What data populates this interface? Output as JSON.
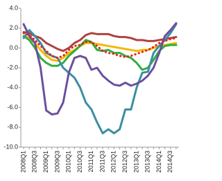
{
  "chart_data": {
    "type": "line",
    "categories": [
      "2008Q1",
      null,
      "2008Q3",
      null,
      "2009Q1",
      null,
      "2009Q3",
      null,
      "2010Q1",
      null,
      "2010Q3",
      null,
      "2011Q1",
      null,
      "2011Q3",
      null,
      "2012Q1",
      null,
      "2012Q3",
      null,
      "2013Q1",
      null,
      "2013Q3",
      null,
      "2014Q1",
      null,
      "2014Q3",
      null
    ],
    "series": [
      {
        "color": "#b0413e",
        "style": "solid",
        "values": [
          1.6,
          1.5,
          1.2,
          1.0,
          0.5,
          0.2,
          -0.1,
          -0.3,
          0.0,
          0.5,
          0.8,
          1.3,
          1.5,
          1.4,
          1.4,
          1.4,
          1.2,
          1.1,
          1.1,
          1.0,
          0.8,
          0.8,
          0.7,
          0.7,
          0.8,
          0.9,
          1.0,
          1.1
        ]
      },
      {
        "color": "#f5b800",
        "style": "solid",
        "values": [
          1.2,
          1.0,
          0.5,
          -0.2,
          -0.8,
          -1.2,
          -1.3,
          -1.0,
          -0.5,
          -0.2,
          0.2,
          0.5,
          0.5,
          0.4,
          0.3,
          0.2,
          0.1,
          0.0,
          -0.1,
          -0.2,
          -0.3,
          -0.2,
          -0.2,
          0.0,
          0.2,
          0.3,
          0.4,
          0.5
        ]
      },
      {
        "color": "#2fae3c",
        "style": "solid",
        "values": [
          1.2,
          0.8,
          0.0,
          -1.0,
          -1.5,
          -1.8,
          -1.8,
          -1.5,
          -0.8,
          -0.3,
          0.2,
          0.8,
          0.6,
          -0.2,
          -0.3,
          -0.2,
          -0.5,
          -0.5,
          -0.8,
          -1.0,
          -1.5,
          -2.2,
          -2.0,
          -1.2,
          -0.3,
          0.2,
          0.3,
          0.3
        ]
      },
      {
        "color": "#3a8fa3",
        "style": "solid",
        "values": [
          1.0,
          1.8,
          1.2,
          0.5,
          -0.5,
          -0.8,
          -1.0,
          -2.0,
          -2.5,
          -3.0,
          -4.0,
          -5.5,
          -6.2,
          -7.5,
          -8.6,
          -8.2,
          -8.6,
          -8.2,
          -6.2,
          -6.2,
          -4.0,
          -2.5,
          -2.4,
          -0.5,
          0.2,
          0.8,
          1.5,
          2.4
        ]
      },
      {
        "color": "#6b4f9e",
        "style": "solid",
        "values": [
          2.4,
          1.2,
          0.5,
          -2.0,
          -6.3,
          -6.7,
          -6.6,
          -5.5,
          -2.5,
          -1.0,
          -0.8,
          -1.0,
          -2.2,
          -2.0,
          -2.8,
          -3.3,
          -3.7,
          -3.8,
          -3.5,
          -3.8,
          -3.6,
          -3.3,
          -2.8,
          -2.0,
          -0.5,
          1.2,
          1.8,
          2.5
        ]
      },
      {
        "color": "#e3231c",
        "style": "dotted",
        "values": [
          1.5,
          1.3,
          0.8,
          0.2,
          -0.3,
          -0.8,
          -1.0,
          -0.8,
          -0.2,
          0.2,
          0.3,
          0.6,
          0.6,
          0.2,
          -0.3,
          -0.5,
          -0.6,
          -0.8,
          -0.9,
          -0.8,
          -0.6,
          -0.4,
          -0.2,
          0.1,
          0.5,
          0.7,
          0.9,
          1.0
        ]
      }
    ],
    "ylim": [
      -10,
      4
    ],
    "yticks": [
      {
        "value": 4,
        "label": "4.0"
      },
      {
        "value": 2,
        "label": "2.0"
      },
      {
        "value": 0,
        "label": "0.0"
      },
      {
        "value": -2,
        "label": "-2.0"
      },
      {
        "value": -4,
        "label": "-4.0"
      },
      {
        "value": -6,
        "label": "-6.0"
      },
      {
        "value": -8,
        "label": "-8.0"
      },
      {
        "value": -10,
        "label": "-10.0"
      }
    ],
    "grid": false
  }
}
